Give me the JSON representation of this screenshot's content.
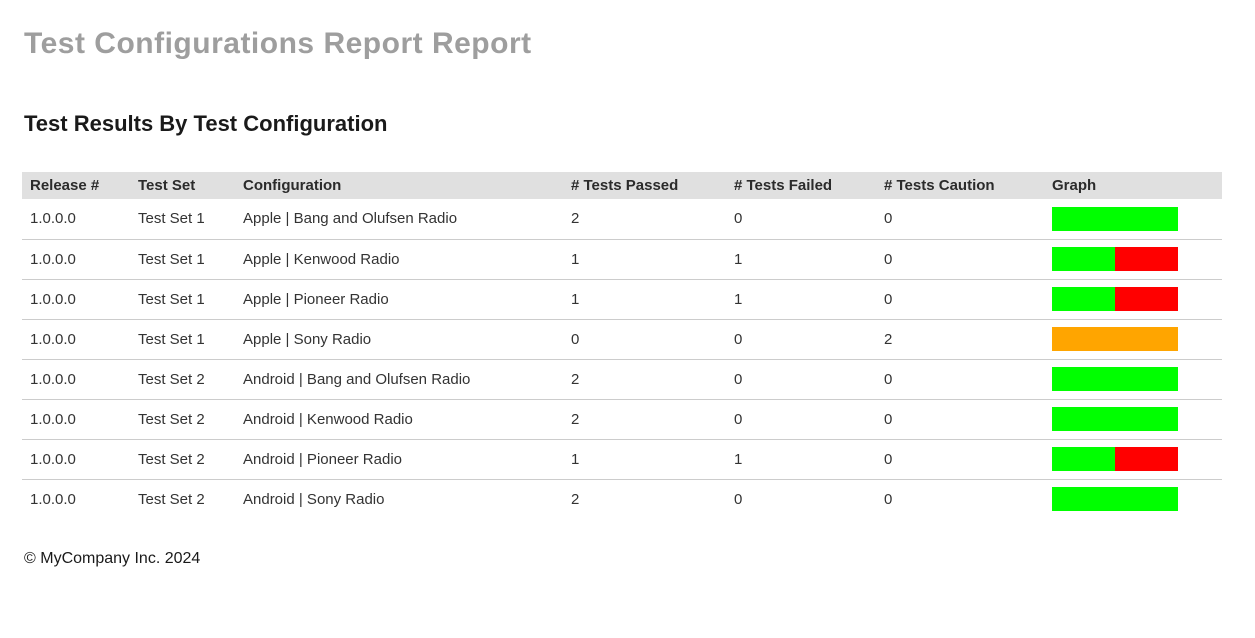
{
  "page": {
    "title": "Test Configurations Report Report",
    "section_title": "Test Results By Test Configuration",
    "footer": "© MyCompany Inc. 2024"
  },
  "colors": {
    "passed": "#00ff00",
    "failed": "#ff0000",
    "caution": "#ffa500",
    "header_bg": "#e0e0e0",
    "title_gray": "#9e9e9e",
    "row_border": "#cccccc"
  },
  "table": {
    "columns": [
      "Release #",
      "Test Set",
      "Configuration",
      "# Tests Passed",
      "# Tests Failed",
      "# Tests Caution",
      "Graph"
    ],
    "rows": [
      {
        "release": "1.0.0.0",
        "test_set": "Test Set 1",
        "configuration": "Apple | Bang and Olufsen Radio",
        "passed": 2,
        "failed": 0,
        "caution": 0
      },
      {
        "release": "1.0.0.0",
        "test_set": "Test Set 1",
        "configuration": "Apple | Kenwood Radio",
        "passed": 1,
        "failed": 1,
        "caution": 0
      },
      {
        "release": "1.0.0.0",
        "test_set": "Test Set 1",
        "configuration": "Apple | Pioneer Radio",
        "passed": 1,
        "failed": 1,
        "caution": 0
      },
      {
        "release": "1.0.0.0",
        "test_set": "Test Set 1",
        "configuration": "Apple | Sony Radio",
        "passed": 0,
        "failed": 0,
        "caution": 2
      },
      {
        "release": "1.0.0.0",
        "test_set": "Test Set 2",
        "configuration": "Android | Bang and Olufsen Radio",
        "passed": 2,
        "failed": 0,
        "caution": 0
      },
      {
        "release": "1.0.0.0",
        "test_set": "Test Set 2",
        "configuration": "Android | Kenwood Radio",
        "passed": 2,
        "failed": 0,
        "caution": 0
      },
      {
        "release": "1.0.0.0",
        "test_set": "Test Set 2",
        "configuration": "Android | Pioneer Radio",
        "passed": 1,
        "failed": 1,
        "caution": 0
      },
      {
        "release": "1.0.0.0",
        "test_set": "Test Set 2",
        "configuration": "Android | Sony Radio",
        "passed": 2,
        "failed": 0,
        "caution": 0
      }
    ]
  }
}
